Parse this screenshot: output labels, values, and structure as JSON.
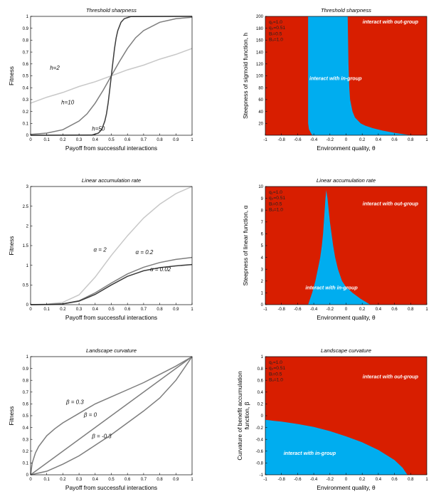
{
  "colors": {
    "red": "#d81e00",
    "blue": "#00adef",
    "dark": "#3c3c3c",
    "mid": "#7d7d7d",
    "light": "#c8c8c8"
  },
  "chart_data": [
    {
      "type": "line",
      "title": "Threshold sharpness",
      "xlabel": "Payoff from successful interactions",
      "ylabel": "Fitness",
      "xlim": [
        0,
        1
      ],
      "ylim": [
        0,
        1
      ],
      "xticks": [
        "0",
        "0.1",
        "0.2",
        "0.3",
        "0.4",
        "0.5",
        "0.6",
        "0.7",
        "0.8",
        "0.9",
        "1"
      ],
      "yticks": [
        "0",
        "0.1",
        "0.2",
        "0.3",
        "0.4",
        "0.5",
        "0.6",
        "0.7",
        "0.8",
        "0.9",
        "1"
      ],
      "series": [
        {
          "name": "h=2",
          "shade": "light",
          "x": [
            0,
            0.1,
            0.2,
            0.3,
            0.4,
            0.5,
            0.6,
            0.7,
            0.8,
            0.9,
            1
          ],
          "y": [
            0.27,
            0.32,
            0.36,
            0.41,
            0.45,
            0.5,
            0.55,
            0.59,
            0.64,
            0.68,
            0.73
          ]
        },
        {
          "name": "h=10",
          "shade": "mid",
          "x": [
            0,
            0.1,
            0.2,
            0.3,
            0.35,
            0.4,
            0.45,
            0.5,
            0.55,
            0.6,
            0.65,
            0.7,
            0.8,
            0.9,
            1
          ],
          "y": [
            0.007,
            0.018,
            0.047,
            0.12,
            0.18,
            0.27,
            0.38,
            0.5,
            0.62,
            0.73,
            0.82,
            0.88,
            0.95,
            0.98,
            0.993
          ]
        },
        {
          "name": "h=50",
          "shade": "dark",
          "x": [
            0,
            0.38,
            0.42,
            0.44,
            0.46,
            0.47,
            0.48,
            0.49,
            0.5,
            0.51,
            0.52,
            0.53,
            0.54,
            0.56,
            0.58,
            0.62,
            1
          ],
          "y": [
            0,
            0.002,
            0.018,
            0.047,
            0.12,
            0.18,
            0.27,
            0.38,
            0.5,
            0.62,
            0.73,
            0.82,
            0.88,
            0.95,
            0.98,
            0.998,
            1
          ]
        }
      ],
      "annotations": [
        {
          "text": "h=2",
          "x": 0.12,
          "y": 0.55
        },
        {
          "text": "h=10",
          "x": 0.19,
          "y": 0.26
        },
        {
          "text": "h=50",
          "x": 0.38,
          "y": 0.04
        }
      ]
    },
    {
      "type": "heatmap",
      "title": "Threshold sharpness",
      "xlabel": "Environment quality, θ",
      "ylabel": "Steepness of sigmoid function, h",
      "xlim": [
        -1,
        1
      ],
      "ylim": [
        0,
        200
      ],
      "xticks": [
        "-1",
        "-0.8",
        "-0.6",
        "-0.4",
        "-0.2",
        "0",
        "0.2",
        "0.4",
        "0.6",
        "0.8",
        "1"
      ],
      "yticks": [
        "20",
        "40",
        "60",
        "80",
        "100",
        "120",
        "140",
        "160",
        "180",
        "200"
      ],
      "params": [
        "q₁=1.0",
        "q₀=0.51",
        "Bᵢ=0.5",
        "Bₒ=1.0"
      ],
      "regions": [
        {
          "label": "interact with out-group",
          "at": [
            0.55,
            188
          ]
        },
        {
          "label": "interact with in-group",
          "at": [
            -0.13,
            93
          ]
        }
      ],
      "in_group_boundary": {
        "left": {
          "y": [
            0,
            5,
            10,
            20,
            40,
            80,
            120,
            160,
            200
          ],
          "x": [
            -0.42,
            -0.44,
            -0.46,
            -0.47,
            -0.47,
            -0.47,
            -0.47,
            -0.47,
            -0.47
          ]
        },
        "right": {
          "y": [
            0,
            4,
            8,
            12,
            16,
            20,
            30,
            40,
            60,
            80,
            120,
            160,
            200
          ],
          "x": [
            0.8,
            0.6,
            0.45,
            0.33,
            0.24,
            0.18,
            0.11,
            0.08,
            0.05,
            0.04,
            0.03,
            0.025,
            0.02
          ]
        }
      }
    },
    {
      "type": "line",
      "title": "Linear accumulation rate",
      "xlabel": "Payoff from successful interactions",
      "ylabel": "Fitness",
      "xlim": [
        0,
        1
      ],
      "ylim": [
        0,
        3
      ],
      "xticks": [
        "0",
        "0.1",
        "0.2",
        "0.3",
        "0.4",
        "0.5",
        "0.6",
        "0.7",
        "0.8",
        "0.9",
        "1"
      ],
      "yticks": [
        "0",
        "0.5",
        "1",
        "1.5",
        "2",
        "2.5",
        "3"
      ],
      "series": [
        {
          "name": "α = 2",
          "shade": "light",
          "x": [
            0,
            0.1,
            0.2,
            0.3,
            0.4,
            0.5,
            0.6,
            0.7,
            0.8,
            0.9,
            1
          ],
          "y": [
            0,
            0.015,
            0.06,
            0.25,
            0.7,
            1.25,
            1.75,
            2.2,
            2.55,
            2.82,
            3.0
          ]
        },
        {
          "name": "α = 0.2",
          "shade": "mid",
          "x": [
            0,
            0.1,
            0.2,
            0.3,
            0.4,
            0.5,
            0.6,
            0.7,
            0.8,
            0.9,
            1
          ],
          "y": [
            0,
            0.005,
            0.02,
            0.1,
            0.3,
            0.55,
            0.78,
            0.95,
            1.07,
            1.15,
            1.2
          ]
        },
        {
          "name": "α = 0.02",
          "shade": "dark",
          "x": [
            0,
            0.1,
            0.2,
            0.3,
            0.4,
            0.5,
            0.6,
            0.7,
            0.8,
            0.9,
            1
          ],
          "y": [
            0,
            0.005,
            0.02,
            0.09,
            0.26,
            0.5,
            0.72,
            0.86,
            0.94,
            0.985,
            1.02
          ]
        }
      ],
      "annotations": [
        {
          "text": "α = 2",
          "x": 0.39,
          "y": 1.35
        },
        {
          "text": "α = 0.2",
          "x": 0.65,
          "y": 1.28
        },
        {
          "text": "α = 0.02",
          "x": 0.74,
          "y": 0.85
        }
      ]
    },
    {
      "type": "heatmap",
      "title": "Linear accumulation rate",
      "xlabel": "Environment quality, θ",
      "ylabel": "Steepness of linear function, α",
      "xlim": [
        -1,
        1
      ],
      "ylim": [
        0,
        10
      ],
      "xticks": [
        "-1",
        "-0.8",
        "-0.6",
        "-0.4",
        "-0.2",
        "0",
        "0.2",
        "0.4",
        "0.6",
        "0.8",
        "1"
      ],
      "yticks": [
        "0",
        "1",
        "2",
        "3",
        "4",
        "5",
        "6",
        "7",
        "8",
        "9",
        "10"
      ],
      "params": [
        "q₁=1.0",
        "q₀=0.51",
        "Bᵢ=0.5",
        "Bₒ=1.0"
      ],
      "regions": [
        {
          "label": "interact with out-group",
          "at": [
            0.55,
            8.4
          ]
        },
        {
          "label": "interact with in-group",
          "at": [
            -0.18,
            1.3
          ]
        }
      ],
      "in_group_boundary": {
        "left": {
          "y": [
            0,
            1,
            2,
            3,
            4,
            5,
            6,
            7,
            8,
            9,
            9.7
          ],
          "x": [
            -0.47,
            -0.42,
            -0.38,
            -0.35,
            -0.32,
            -0.3,
            -0.285,
            -0.275,
            -0.265,
            -0.255,
            -0.245
          ]
        },
        "right": {
          "y": [
            0,
            0.5,
            1,
            1.5,
            2,
            3,
            4,
            5,
            6,
            7,
            8,
            9,
            9.7
          ],
          "x": [
            0.3,
            0.18,
            0.08,
            0.0,
            -0.05,
            -0.1,
            -0.135,
            -0.16,
            -0.18,
            -0.2,
            -0.215,
            -0.23,
            -0.245
          ]
        }
      }
    },
    {
      "type": "line",
      "title": "Landscape curvature",
      "xlabel": "Payoff from successful interactions",
      "ylabel": "Fitness",
      "xlim": [
        0,
        1
      ],
      "ylim": [
        0,
        1
      ],
      "xticks": [
        "0",
        "0.1",
        "0.2",
        "0.3",
        "0.4",
        "0.5",
        "0.6",
        "0.7",
        "0.8",
        "0.9",
        "1"
      ],
      "yticks": [
        "0",
        "0.1",
        "0.2",
        "0.3",
        "0.4",
        "0.5",
        "0.6",
        "0.7",
        "0.8",
        "0.9",
        "1"
      ],
      "series": [
        {
          "name": "β = 0.3",
          "shade": "mid",
          "x": [
            0,
            0.01,
            0.03,
            0.05,
            0.1,
            0.15,
            0.2,
            0.3,
            0.4,
            0.5,
            0.6,
            0.7,
            0.8,
            0.9,
            1
          ],
          "y": [
            0,
            0.1,
            0.185,
            0.24,
            0.33,
            0.39,
            0.44,
            0.52,
            0.6,
            0.66,
            0.72,
            0.78,
            0.85,
            0.92,
            1
          ]
        },
        {
          "name": "β = 0",
          "shade": "mid",
          "x": [
            0,
            1
          ],
          "y": [
            0,
            1
          ]
        },
        {
          "name": "β = -0.3",
          "shade": "mid",
          "x": [
            0,
            0.1,
            0.2,
            0.3,
            0.4,
            0.5,
            0.6,
            0.7,
            0.8,
            0.9,
            1
          ],
          "y": [
            0,
            0.03,
            0.09,
            0.16,
            0.25,
            0.34,
            0.44,
            0.54,
            0.65,
            0.8,
            1
          ]
        }
      ],
      "annotations": [
        {
          "text": "β = 0.3",
          "x": 0.22,
          "y": 0.6
        },
        {
          "text": "β = 0",
          "x": 0.33,
          "y": 0.49
        },
        {
          "text": "β = -0.3",
          "x": 0.38,
          "y": 0.31
        }
      ]
    },
    {
      "type": "heatmap",
      "title": "Landscape curvature",
      "xlabel": "Environment quality, θ",
      "ylabel": "Curvature of benefit accumulation function, β",
      "xlim": [
        -1,
        1
      ],
      "ylim": [
        -1,
        1
      ],
      "xticks": [
        "-1",
        "-0.8",
        "-0.6",
        "-0.4",
        "-0.2",
        "0",
        "0.2",
        "0.4",
        "0.6",
        "0.8",
        "1"
      ],
      "yticks": [
        "-1",
        "-0.8",
        "-0.6",
        "-0.4",
        "-0.2",
        "0",
        "0.2",
        "0.4",
        "0.6",
        "0.8",
        "1"
      ],
      "params": [
        "q₁=1.0",
        "q₀=0.51",
        "Bᵢ=0.5",
        "Bₒ=1.0"
      ],
      "regions": [
        {
          "label": "interact with out-group",
          "at": [
            0.55,
            0.63
          ]
        },
        {
          "label": "interact with in-group",
          "at": [
            -0.45,
            -0.66
          ]
        }
      ],
      "in_group_boundary": {
        "top": {
          "x": [
            -1,
            -0.8,
            -0.6,
            -0.4,
            -0.2,
            0,
            0.2,
            0.4,
            0.6,
            0.7,
            0.76
          ],
          "y": [
            -0.07,
            -0.1,
            -0.14,
            -0.19,
            -0.26,
            -0.35,
            -0.45,
            -0.58,
            -0.75,
            -0.88,
            -1
          ]
        }
      }
    }
  ]
}
